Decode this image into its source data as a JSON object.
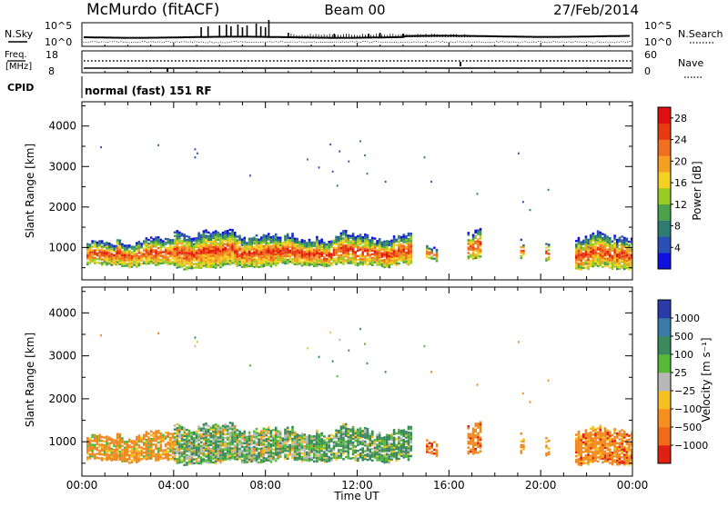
{
  "header": {
    "station": "McMurdo (fitACF)",
    "beam": "Beam 00",
    "date": "27/Feb/2014"
  },
  "summary_panels": {
    "nsky_label": "N.Sky",
    "nsearch_label": "N.Search",
    "noise_ticks": [
      "10^5",
      "10^0"
    ],
    "freq_label_line1": "Freq.",
    "freq_label_line2": "[MHz]",
    "freq_ticks": [
      "18",
      "8"
    ],
    "nave_label": "Nave",
    "nave_ticks": [
      "60",
      "0"
    ],
    "cpid_label": "CPID",
    "cpid_text": "normal (fast) 151 RF"
  },
  "chart_data": [
    {
      "type": "heatmap",
      "name": "power",
      "ylabel": "Slant Range [km]",
      "yticks": [
        "1000",
        "2000",
        "3000",
        "4000"
      ],
      "ylim": [
        200,
        4600
      ],
      "xlim_hours": [
        0,
        24
      ],
      "colorbar_label": "Power [dB]",
      "colorbar_ticks": [
        "4",
        "8",
        "12",
        "16",
        "20",
        "24",
        "28"
      ],
      "colorbar_colors": [
        "#1010e0",
        "#2a50b8",
        "#2e7c72",
        "#4aa24a",
        "#98cc22",
        "#f5d020",
        "#f5a020",
        "#f07020",
        "#e83a10",
        "#e01010"
      ],
      "colorbar_range": [
        0,
        30
      ]
    },
    {
      "type": "heatmap",
      "name": "velocity",
      "ylabel": "Slant Range [km]",
      "yticks": [
        "1000",
        "2000",
        "3000",
        "4000"
      ],
      "ylim": [
        200,
        4600
      ],
      "xlim_hours": [
        0,
        24
      ],
      "colorbar_label": "Velocity [m s⁻¹]",
      "colorbar_ticks": [
        "1000",
        "500",
        "100",
        "25",
        "−25",
        "−100",
        "−500",
        "−1000"
      ],
      "colorbar_colors": [
        "#2a3aa8",
        "#3a7aa8",
        "#3a8a5e",
        "#58b838",
        "#b8b8b8",
        "#f5c020",
        "#f59020",
        "#f06a18",
        "#e02010"
      ]
    }
  ],
  "time_axis": {
    "ticks": [
      "00:00",
      "04:00",
      "08:00",
      "12:00",
      "16:00",
      "20:00",
      "00:00"
    ],
    "label": "Time UT"
  }
}
